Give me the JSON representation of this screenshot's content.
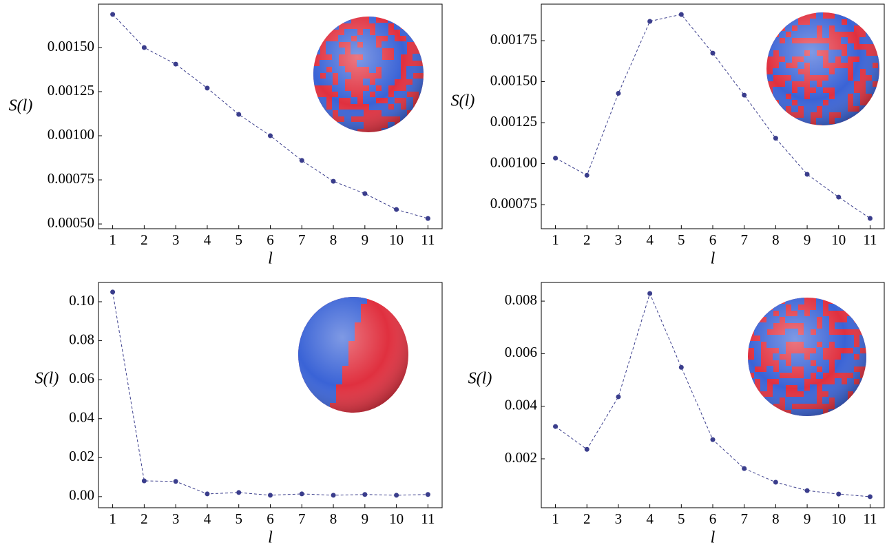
{
  "chart_data": [
    {
      "type": "line",
      "xlabel": "l",
      "ylabel": "S(l)",
      "color": "#3a3d8c",
      "x": [
        1,
        2,
        3,
        4,
        5,
        6,
        7,
        8,
        9,
        10,
        11
      ],
      "values": [
        0.001688,
        0.0015,
        0.001406,
        0.00127,
        0.001121,
        0.001,
        0.00086,
        0.000742,
        0.000672,
        0.000582,
        0.000531
      ],
      "xlim": [
        0.55,
        11.45
      ],
      "xticks": [
        1,
        2,
        3,
        4,
        5,
        6,
        7,
        8,
        9,
        10,
        11
      ],
      "ylim": [
        0.000473,
        0.001746
      ],
      "yticks": [
        {
          "value": 0.0005,
          "label": "0.00050"
        },
        {
          "value": 0.00075,
          "label": "0.00075"
        },
        {
          "value": 0.001,
          "label": "0.00100"
        },
        {
          "value": 0.00125,
          "label": "0.00125"
        },
        {
          "value": 0.0015,
          "label": "0.00150"
        }
      ]
    },
    {
      "type": "line",
      "xlabel": "l",
      "ylabel": "S(l)",
      "color": "#3a3d8c",
      "x": [
        1,
        2,
        3,
        4,
        5,
        6,
        7,
        8,
        9,
        10,
        11
      ],
      "values": [
        0.001034,
        0.000929,
        0.001429,
        0.001868,
        0.00191,
        0.001674,
        0.001418,
        0.001155,
        0.000935,
        0.000796,
        0.000666
      ],
      "xlim": [
        0.55,
        11.45
      ],
      "xticks": [
        1,
        2,
        3,
        4,
        5,
        6,
        7,
        8,
        9,
        10,
        11
      ],
      "ylim": [
        0.000603,
        0.001973
      ],
      "yticks": [
        {
          "value": 0.00075,
          "label": "0.00075"
        },
        {
          "value": 0.001,
          "label": "0.00100"
        },
        {
          "value": 0.00125,
          "label": "0.00125"
        },
        {
          "value": 0.0015,
          "label": "0.00150"
        },
        {
          "value": 0.00175,
          "label": "0.00175"
        }
      ]
    },
    {
      "type": "line",
      "xlabel": "l",
      "ylabel": "S(l)",
      "color": "#3a3d8c",
      "x": [
        1,
        2,
        3,
        4,
        5,
        6,
        7,
        8,
        9,
        10,
        11
      ],
      "values": [
        0.105,
        0.0081,
        0.0078,
        0.0014,
        0.0021,
        0.0007,
        0.0014,
        0.0007,
        0.0011,
        0.0007,
        0.0011
      ],
      "xlim": [
        0.55,
        11.45
      ],
      "xticks": [
        1,
        2,
        3,
        4,
        5,
        6,
        7,
        8,
        9,
        10,
        11
      ],
      "ylim": [
        -0.0057,
        0.1099
      ],
      "yticks": [
        {
          "value": 0,
          "label": "0.00"
        },
        0.02,
        0.04,
        0.06,
        0.08,
        {
          "value": 0.1,
          "label": "0.10"
        }
      ]
    },
    {
      "type": "line",
      "xlabel": "l",
      "ylabel": "S(l)",
      "color": "#3a3d8c",
      "x": [
        1,
        2,
        3,
        4,
        5,
        6,
        7,
        8,
        9,
        10,
        11
      ],
      "values": [
        0.00323,
        0.00236,
        0.00436,
        0.00829,
        0.00548,
        0.00273,
        0.00163,
        0.00111,
        0.00079,
        0.00066,
        0.00056
      ],
      "xlim": [
        0.55,
        11.45
      ],
      "xticks": [
        1,
        2,
        3,
        4,
        5,
        6,
        7,
        8,
        9,
        10,
        11
      ],
      "ylim": [
        0.000139,
        0.00871
      ],
      "yticks": [
        0.002,
        0.004,
        0.006,
        0.008
      ]
    }
  ]
}
